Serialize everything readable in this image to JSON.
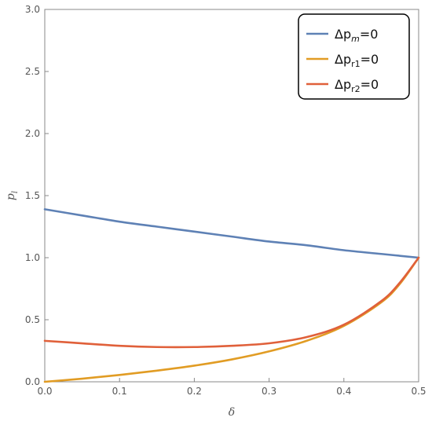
{
  "chart_data": {
    "type": "line",
    "title": "",
    "xlabel": "δ",
    "ylabel_main": "p",
    "ylabel_sub": "l",
    "xlim": [
      0,
      0.5
    ],
    "ylim": [
      0,
      3.0
    ],
    "x_ticks": [
      0.0,
      0.1,
      0.2,
      0.3,
      0.4,
      0.5
    ],
    "x_tick_labels": [
      "0.0",
      "0.1",
      "0.2",
      "0.3",
      "0.4",
      "0.5"
    ],
    "y_ticks": [
      0.0,
      0.5,
      1.0,
      1.5,
      2.0,
      2.5,
      3.0
    ],
    "y_tick_labels": [
      "0.0",
      "0.5",
      "1.0",
      "1.5",
      "2.0",
      "2.5",
      "3.0"
    ],
    "grid": false,
    "frame": true,
    "legend_position": "top-right",
    "series": [
      {
        "legend_main": "Δp",
        "legend_sub": "m",
        "legend_sub_italic": true,
        "legend_suffix": "=0",
        "color": "#5e81b5",
        "x": [
          0.0,
          0.05,
          0.1,
          0.15,
          0.2,
          0.25,
          0.3,
          0.35,
          0.4,
          0.45,
          0.5
        ],
        "y": [
          1.39,
          1.34,
          1.29,
          1.25,
          1.21,
          1.17,
          1.13,
          1.1,
          1.06,
          1.03,
          1.0
        ]
      },
      {
        "legend_main": "Δp",
        "legend_sub": "r1",
        "legend_sub_italic": false,
        "legend_suffix": "=0",
        "color": "#e19c24",
        "x": [
          0.0,
          0.05,
          0.1,
          0.15,
          0.2,
          0.25,
          0.3,
          0.35,
          0.4,
          0.45,
          0.475,
          0.5
        ],
        "y": [
          0.0,
          0.025,
          0.055,
          0.09,
          0.13,
          0.18,
          0.245,
          0.33,
          0.45,
          0.64,
          0.79,
          1.0
        ]
      },
      {
        "legend_main": "Δp",
        "legend_sub": "r2",
        "legend_sub_italic": false,
        "legend_suffix": "=0",
        "color": "#e0603a",
        "x": [
          0.0,
          0.05,
          0.1,
          0.15,
          0.2,
          0.25,
          0.3,
          0.35,
          0.4,
          0.45,
          0.475,
          0.5
        ],
        "y": [
          0.33,
          0.31,
          0.29,
          0.28,
          0.28,
          0.29,
          0.31,
          0.36,
          0.46,
          0.65,
          0.8,
          1.0
        ]
      }
    ]
  }
}
